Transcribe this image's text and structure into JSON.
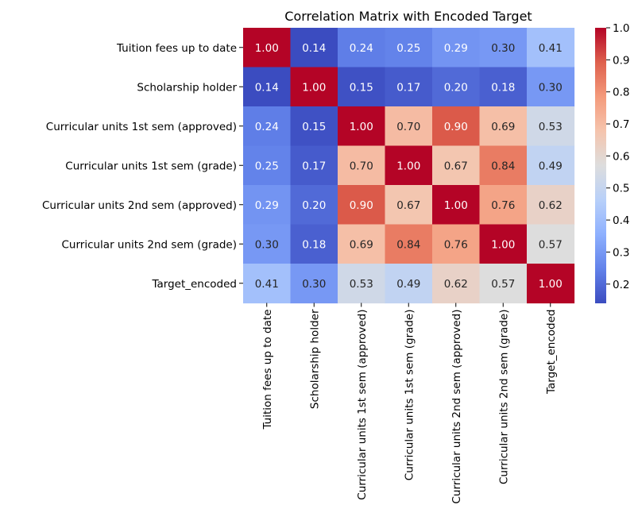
{
  "chart_data": {
    "type": "heatmap",
    "title": "Correlation Matrix with Encoded Target",
    "labels": [
      "Tuition fees up to date",
      "Scholarship holder",
      "Curricular units 1st sem (approved)",
      "Curricular units 1st sem (grade)",
      "Curricular units 2nd sem (approved)",
      "Curricular units 2nd sem (grade)",
      "Target_encoded"
    ],
    "values": [
      [
        1.0,
        0.14,
        0.24,
        0.25,
        0.29,
        0.3,
        0.41
      ],
      [
        0.14,
        1.0,
        0.15,
        0.17,
        0.2,
        0.18,
        0.3
      ],
      [
        0.24,
        0.15,
        1.0,
        0.7,
        0.9,
        0.69,
        0.53
      ],
      [
        0.25,
        0.17,
        0.7,
        1.0,
        0.67,
        0.84,
        0.49
      ],
      [
        0.29,
        0.2,
        0.9,
        0.67,
        1.0,
        0.76,
        0.62
      ],
      [
        0.3,
        0.18,
        0.69,
        0.84,
        0.76,
        1.0,
        0.57
      ],
      [
        0.41,
        0.3,
        0.53,
        0.49,
        0.62,
        0.57,
        1.0
      ]
    ],
    "colormap": "coolwarm",
    "vmin": 0.14,
    "vmax": 1.0,
    "colorbar_ticks": [
      1.0,
      0.9,
      0.8,
      0.7,
      0.6,
      0.5,
      0.4,
      0.3,
      0.2
    ],
    "colorbar_tick_labels": [
      "1.0",
      "0.9",
      "0.8",
      "0.7",
      "0.6",
      "0.5",
      "0.4",
      "0.3",
      "0.2"
    ],
    "annotation_format": "0.00",
    "grid": false,
    "legend": "colorbar-right"
  }
}
